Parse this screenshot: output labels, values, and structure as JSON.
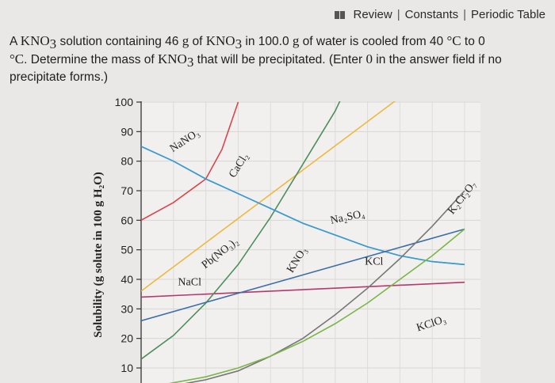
{
  "header": {
    "links": [
      "Review",
      "Constants",
      "Periodic Table"
    ],
    "separator": "|"
  },
  "question": {
    "p1": "A ",
    "f1": "KNO",
    "s1": "3",
    "p2": " solution containing 46 ",
    "g1": "g",
    "p3": " of ",
    "f2": "KNO",
    "s2": "3",
    "p4": " in 100.0 ",
    "g2": "g",
    "p5": " of water is cooled from 40 ",
    "deg1": "°C",
    "p6": " to 0",
    "deg2": "°C",
    "p7": ". Determine the mass of ",
    "f3": "KNO",
    "s3": "3",
    "p8": " that will be precipitated. (Enter ",
    "zero": "0",
    "p9": " in the answer field if no precipitate forms.)"
  },
  "chart_data": {
    "type": "line",
    "ylabel": "Solubility (g solute in 100 g H₂O)",
    "ylim": [
      0,
      100
    ],
    "yticks": [
      10,
      20,
      30,
      40,
      50,
      60,
      70,
      80,
      90,
      100
    ],
    "xlim": [
      0,
      100
    ],
    "grid": true,
    "series": [
      {
        "name": "NaNO₃",
        "color": "#3b9ad0",
        "x": [
          0,
          10,
          20,
          30,
          40,
          50,
          60,
          70,
          80,
          90,
          100
        ],
        "y": [
          85,
          80,
          74,
          69,
          64,
          59,
          55,
          51,
          48,
          46,
          45
        ]
      },
      {
        "name": "CaCl₂",
        "color": "#d9454b",
        "x": [
          0,
          10,
          20,
          25,
          30
        ],
        "y": [
          60,
          66,
          74,
          84,
          100
        ]
      },
      {
        "name": "Pb(NO₃)₂",
        "color": "#f0b840",
        "x": [
          0,
          100
        ],
        "y": [
          36,
          118
        ]
      },
      {
        "name": "NaCl",
        "color": "#b5386e",
        "x": [
          0,
          100
        ],
        "y": [
          34,
          39
        ]
      },
      {
        "name": "KNO₃",
        "color": "#4e8f5d",
        "x": [
          0,
          10,
          20,
          30,
          40,
          50,
          60,
          70
        ],
        "y": [
          13,
          21,
          32,
          45,
          61,
          79,
          97,
          120
        ]
      },
      {
        "name": "Na₂SO₄",
        "color": "#3b9ad0",
        "x": [
          0,
          10,
          20,
          30,
          40,
          50,
          60,
          70,
          80,
          90,
          100
        ],
        "y": [
          85,
          80,
          74,
          69,
          64,
          59,
          55,
          51,
          48,
          46,
          45
        ]
      },
      {
        "name": "KCl",
        "color": "#3c6ea8",
        "x": [
          0,
          100
        ],
        "y": [
          26,
          57
        ]
      },
      {
        "name": "K₂Cr₂O₇",
        "color": "#777777",
        "x": [
          0,
          10,
          20,
          30,
          40,
          50,
          60,
          70,
          80,
          90,
          100
        ],
        "y": [
          3,
          4,
          6,
          9,
          14,
          20,
          28,
          37,
          47,
          58,
          70
        ]
      },
      {
        "name": "KClO₃",
        "color": "#7ab648",
        "x": [
          0,
          10,
          20,
          30,
          40,
          50,
          60,
          70,
          80,
          90,
          100
        ],
        "y": [
          3,
          5,
          7,
          10,
          14,
          19,
          25,
          32,
          40,
          48,
          57
        ]
      }
    ],
    "labels": [
      {
        "text": "NaNO₃",
        "at": [
          14,
          86
        ],
        "rot": -33
      },
      {
        "text": "CaCl₂",
        "at": [
          31,
          78
        ],
        "rot": -58
      },
      {
        "text": "Pb(NO₃)₂",
        "at": [
          25,
          48
        ],
        "rot": -38
      },
      {
        "text": "NaCl",
        "at": [
          15,
          38
        ],
        "rot": 0
      },
      {
        "text": "KNO₃",
        "at": [
          49,
          46
        ],
        "rot": -58
      },
      {
        "text": "Na₂SO₄",
        "at": [
          64,
          60
        ],
        "rot": -12
      },
      {
        "text": "KCl",
        "at": [
          72,
          45
        ],
        "rot": 0
      },
      {
        "text": "K₂Cr₂O₇",
        "at": [
          100,
          67
        ],
        "rot": -52
      },
      {
        "text": "KClO₃",
        "at": [
          90,
          24
        ],
        "rot": -18
      }
    ]
  }
}
